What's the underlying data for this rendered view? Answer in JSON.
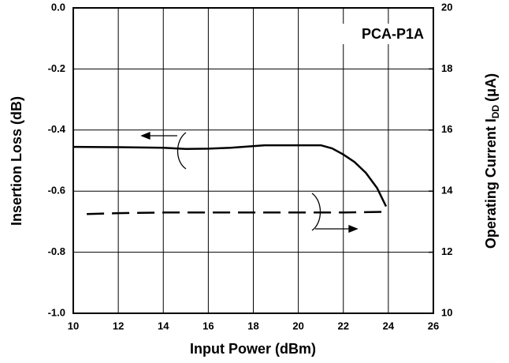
{
  "chart_data": {
    "type": "line",
    "xlabel": "Input Power (dBm)",
    "ylabel": "Insertion Loss (dB)",
    "y2label": "Operating Current I",
    "y2label_sub": "DD",
    "y2label_end": "(μA)",
    "annotation": "PCA-P1A",
    "xlim": [
      10,
      26
    ],
    "xticks": [
      10,
      12,
      14,
      16,
      18,
      20,
      22,
      24,
      26
    ],
    "ylim": [
      -1,
      0
    ],
    "yticks": [
      {
        "value": 0,
        "label": "0.0"
      },
      -0.2,
      -0.4,
      -0.6,
      -0.8,
      {
        "value": -1,
        "label": "-1.0"
      }
    ],
    "y2lim": [
      10,
      20
    ],
    "y2ticks": [
      10,
      12,
      14,
      16,
      18,
      20
    ],
    "grid": true,
    "series": [
      {
        "color": "#000000",
        "dashed": false,
        "x": [
          10,
          12,
          14,
          15,
          16,
          17,
          18.5,
          20,
          21,
          21.5,
          22,
          22.5,
          23,
          23.5,
          23.9
        ],
        "values": [
          -0.455,
          -0.456,
          -0.458,
          -0.462,
          -0.461,
          -0.458,
          -0.45,
          -0.45,
          -0.45,
          -0.46,
          -0.48,
          -0.505,
          -0.54,
          -0.59,
          -0.65
        ]
      },
      {
        "color": "#000000",
        "dashed": true,
        "axis": "y2",
        "x": [
          10.6,
          12,
          14,
          16,
          18,
          20,
          22,
          23.8
        ],
        "values": [
          13.25,
          13.28,
          13.3,
          13.3,
          13.3,
          13.3,
          13.3,
          13.32
        ]
      }
    ]
  }
}
